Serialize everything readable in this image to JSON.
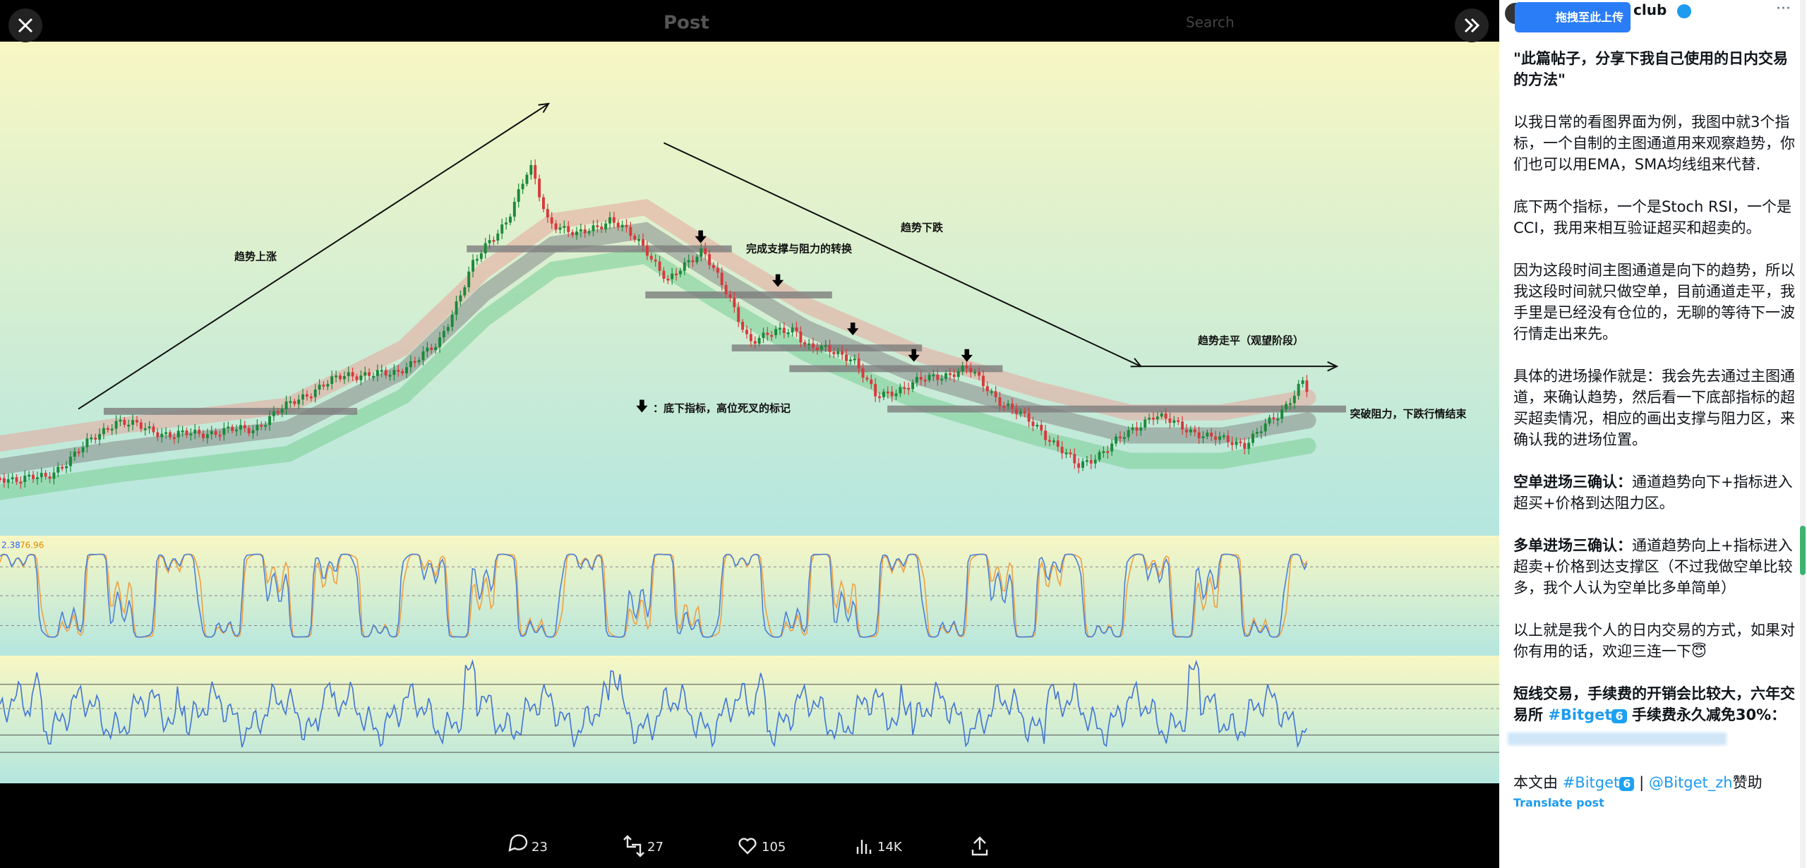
{
  "top_bar": {
    "title": "Post",
    "search": "Search"
  },
  "chart_annotations": {
    "uptrend": "趋势上涨",
    "downtrend": "趋势下跌",
    "sr_flip": "完成支撑与阻力的转换",
    "flat": "趋势走平（观望阶段）",
    "legend": "：底下指标，高位死叉的标记",
    "breakout": "突破阻力，下跌行情结束",
    "stoch_k": "2.38",
    "stoch_d": "76.96"
  },
  "actions": {
    "replies": "23",
    "reposts": "27",
    "likes": "105",
    "views": "14K"
  },
  "post": {
    "author": "club",
    "upload_button": "拖拽至此上传",
    "title": "\"此篇帖子，分享下我自己使用的日内交易的方法\"",
    "paragraphs": [
      {
        "text": "以我日常的看图界面为例，我图中就3个指标，一个自制的主图通道用来观察趋势，你们也可以用EMA，SMA均线组来代替."
      },
      {
        "text": "底下两个指标，一个是Stoch RSI，一个是CCI，我用来相互验证超买和超卖的。"
      },
      {
        "text": "因为这段时间主图通道是向下的趋势，所以我这段时间就只做空单，目前通道走平，我手里是已经没有仓位的，无聊的等待下一波行情走出来先。"
      },
      {
        "text": "具体的进场操作就是：我会先去通过主图通道，来确认趋势，然后看一下底部指标的超买超卖情况，相应的画出支撑与阻力区，来确认我的进场位置。"
      },
      {
        "bold": "空单进场三确认：",
        "text": "通道趋势向下+指标进入超买+价格到达阻力区。"
      },
      {
        "bold": "多单进场三确认：",
        "text": "通道趋势向上+指标进入超卖+价格到达支撑区（不过我做空单比较多，我个人认为空单比多单简单）"
      },
      {
        "text": "以上就是我个人的日内交易的方式，如果对你有用的话，欢迎三连一下😇"
      }
    ],
    "promo": {
      "before": "短线交易，手续费的开销会比较大，六年交易所 ",
      "hashtag": "#Bitget",
      "badge": "6",
      "after": " 手续费永久减免30%："
    },
    "sponsor": {
      "before": "本文由 ",
      "hashtag": "#Bitget",
      "badge": "6",
      "separator": " | ",
      "mention": "@Bitget_zh",
      "after": "赞助"
    },
    "translate": "Translate post"
  }
}
